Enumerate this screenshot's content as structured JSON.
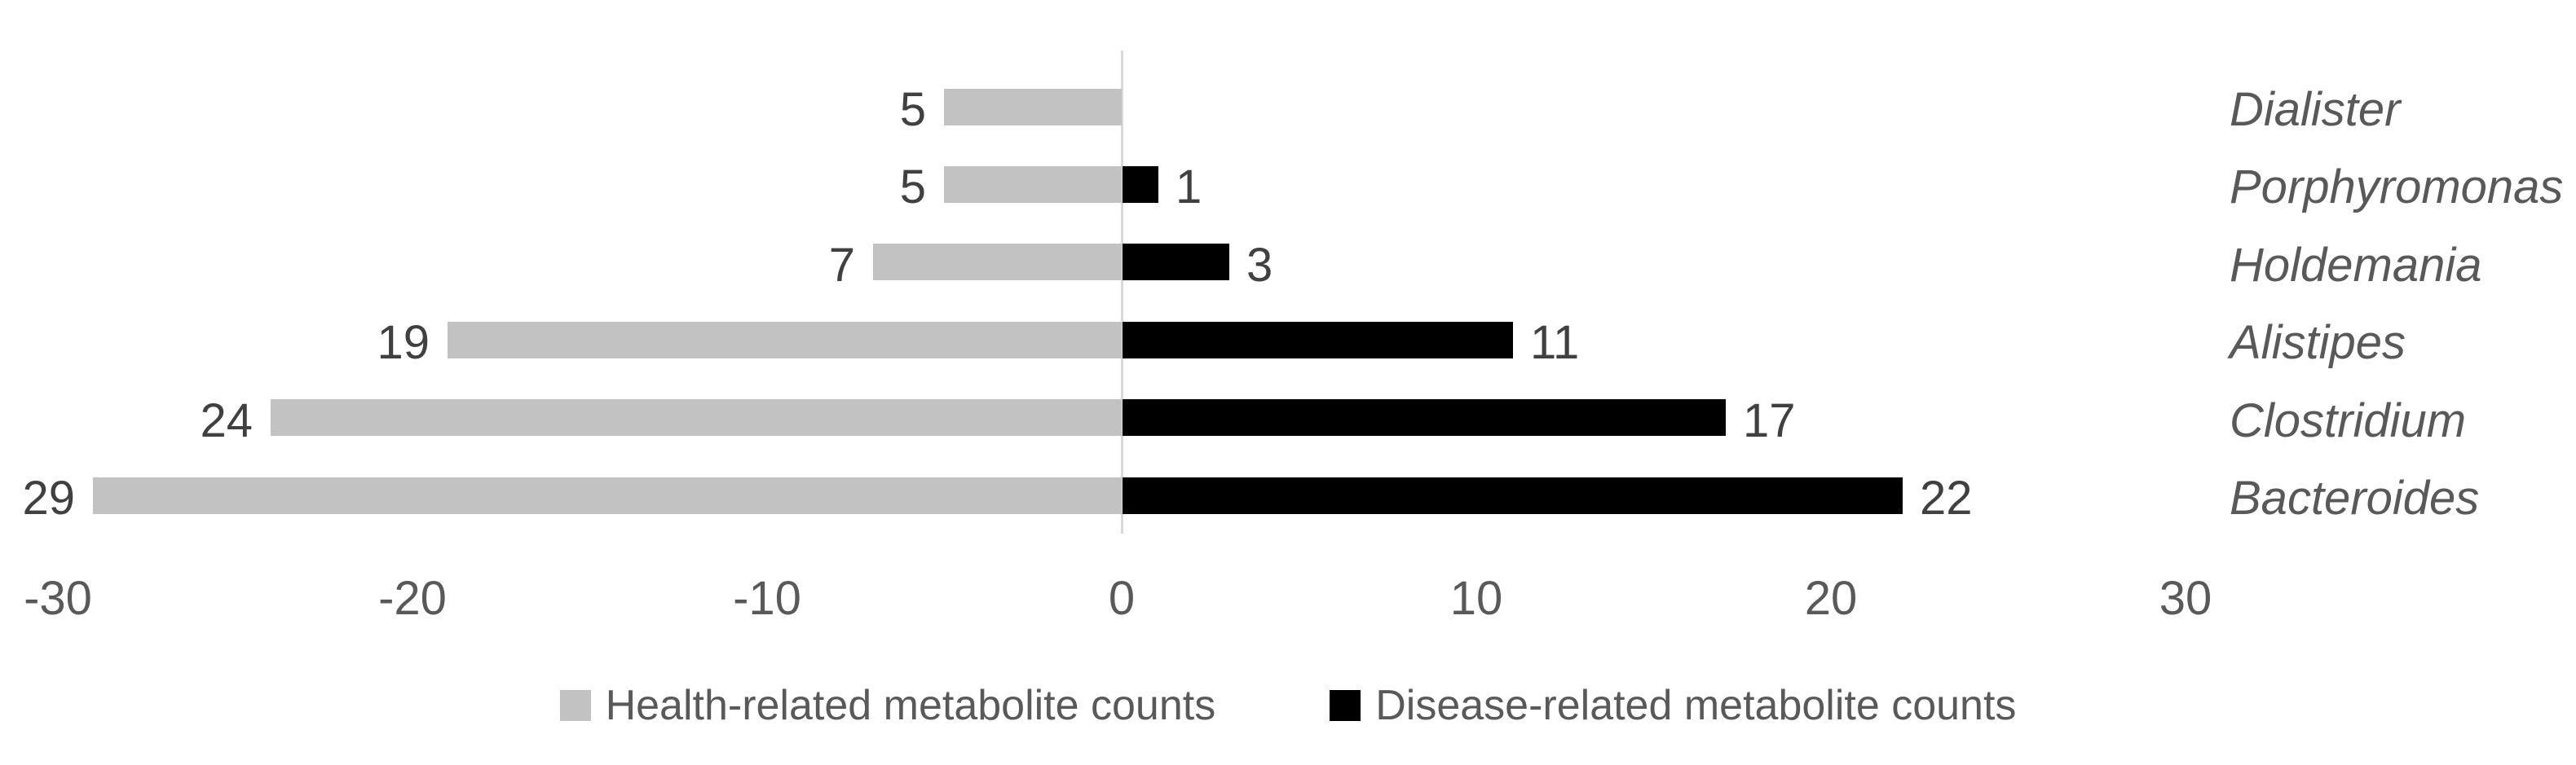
{
  "chart_data": {
    "type": "bar",
    "subtype": "diverging-horizontal",
    "title": "",
    "xlabel": "",
    "ylabel": "",
    "categories": [
      "Dialister",
      "Porphyromonas",
      "Holdemania",
      "Alistipes",
      "Clostridium",
      "Bacteroides"
    ],
    "series": [
      {
        "name": "Health-related metabolite counts",
        "direction": "left",
        "color": "#c2c2c2",
        "values": [
          5,
          5,
          7,
          19,
          24,
          29
        ]
      },
      {
        "name": "Disease-related metabolite counts",
        "direction": "right",
        "color": "#000000",
        "values": [
          0,
          1,
          3,
          11,
          17,
          22
        ]
      }
    ],
    "x_ticks": [
      -30,
      -20,
      -10,
      0,
      10,
      20,
      30
    ],
    "xlim": [
      -30,
      30
    ],
    "grid": "none",
    "zero_axis_line_color": "#d9d9d9",
    "data_label_color": "#404040",
    "tick_label_color": "#595959",
    "category_label_style": "italic",
    "legend_position": "bottom"
  },
  "legend": {
    "items": [
      {
        "label": "Health-related metabolite counts",
        "color": "#c2c2c2"
      },
      {
        "label": "Disease-related metabolite counts",
        "color": "#000000"
      }
    ]
  }
}
